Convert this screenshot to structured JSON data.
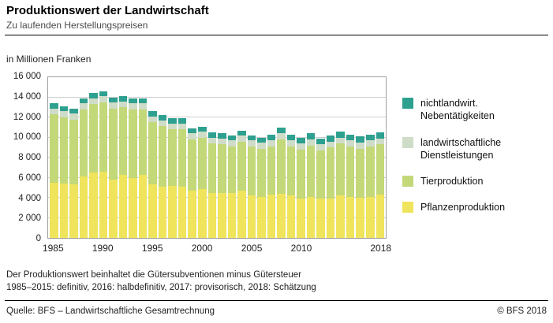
{
  "header": {
    "title": "Produktionswert der Landwirtschaft",
    "subtitle": "Zu laufenden Herstellungspreisen"
  },
  "chart_data": {
    "type": "bar",
    "stacked": true,
    "unit_label": "in Millionen Franken",
    "grid": true,
    "legend_position": "right",
    "ylim": [
      0,
      16000
    ],
    "yticks": [
      {
        "value": 0,
        "label": "0"
      },
      {
        "value": 2000,
        "label": "2 000"
      },
      {
        "value": 4000,
        "label": "4 000"
      },
      {
        "value": 6000,
        "label": "6 000"
      },
      {
        "value": 8000,
        "label": "8 000"
      },
      {
        "value": 10000,
        "label": "10 000"
      },
      {
        "value": 12000,
        "label": "12 000"
      },
      {
        "value": 14000,
        "label": "14 000"
      },
      {
        "value": 16000,
        "label": "16 000"
      }
    ],
    "years": [
      1985,
      1986,
      1987,
      1988,
      1989,
      1990,
      1991,
      1992,
      1993,
      1994,
      1995,
      1996,
      1997,
      1998,
      1999,
      2000,
      2001,
      2002,
      2003,
      2004,
      2005,
      2006,
      2007,
      2008,
      2009,
      2010,
      2011,
      2012,
      2013,
      2014,
      2015,
      2016,
      2017,
      2018
    ],
    "xticks": [
      1985,
      1990,
      1995,
      2000,
      2005,
      2010,
      2018
    ],
    "series": [
      {
        "name": "Pflanzenproduktion",
        "color": "#efe45c",
        "values": [
          5500,
          5400,
          5300,
          6100,
          6500,
          6600,
          5800,
          6300,
          6000,
          6300,
          5300,
          5100,
          5200,
          5100,
          4700,
          4900,
          4500,
          4500,
          4500,
          4700,
          4200,
          4100,
          4300,
          4400,
          4200,
          3900,
          4100,
          3900,
          3900,
          4200,
          4100,
          4000,
          4100,
          4300
        ]
      },
      {
        "name": "Tierproduktion",
        "color": "#c3d878",
        "values": [
          6800,
          6600,
          6500,
          6700,
          6800,
          6900,
          7100,
          6700,
          6800,
          6500,
          6200,
          6000,
          5600,
          5700,
          5100,
          5100,
          4900,
          4800,
          4600,
          4900,
          4900,
          4800,
          4800,
          5400,
          4900,
          4900,
          5100,
          4800,
          5100,
          5200,
          5000,
          4900,
          5000,
          5000
        ]
      },
      {
        "name": "landwirtschaftliche Dienstleistungen",
        "color": "#cfdcc8",
        "values": [
          600,
          600,
          600,
          600,
          600,
          600,
          600,
          600,
          600,
          600,
          600,
          600,
          600,
          600,
          600,
          600,
          600,
          600,
          600,
          600,
          600,
          600,
          600,
          600,
          600,
          600,
          600,
          600,
          600,
          600,
          600,
          600,
          600,
          600
        ]
      },
      {
        "name": "nichtlandwirt. Nebentätigkeiten",
        "color": "#2ea08f",
        "values": [
          500,
          500,
          500,
          500,
          500,
          500,
          500,
          500,
          500,
          500,
          500,
          500,
          500,
          500,
          500,
          500,
          500,
          500,
          500,
          500,
          500,
          500,
          600,
          600,
          600,
          600,
          600,
          600,
          600,
          600,
          600,
          600,
          600,
          600
        ]
      }
    ]
  },
  "footnotes": [
    "Der Produktionswert beinhaltet die Gütersubventionen minus Gütersteuer",
    "1985–2015: definitiv, 2016: halbdefinitiv, 2017: provisorisch, 2018: Schätzung"
  ],
  "footer": {
    "source": "Quelle: BFS – Landwirtschaftliche Gesamtrechnung",
    "copyright": "© BFS 2018"
  }
}
